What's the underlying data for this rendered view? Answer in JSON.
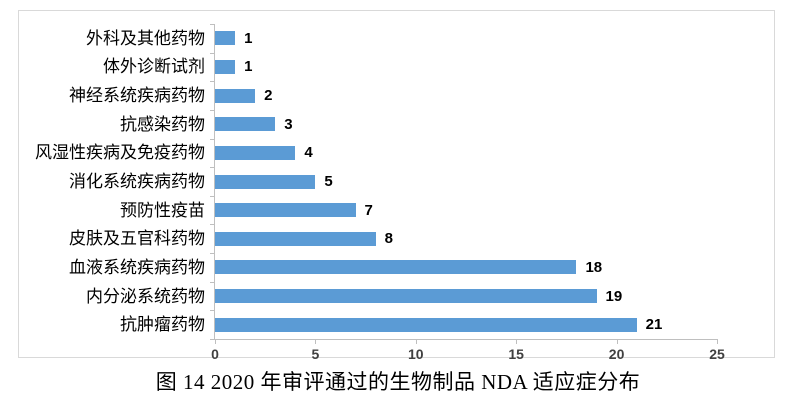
{
  "figure": {
    "caption": "图 14  2020 年审评通过的生物制品 NDA 适应症分布"
  },
  "chart_data": {
    "type": "bar",
    "orientation": "horizontal",
    "title": "图 14  2020 年审评通过的生物制品 NDA 适应症分布",
    "categories": [
      "外科及其他药物",
      "体外诊断试剂",
      "神经系统疾病药物",
      "抗感染药物",
      "风湿性疾病及免疫药物",
      "消化系统疾病药物",
      "预防性疫苗",
      "皮肤及五官科药物",
      "血液系统疾病药物",
      "内分泌系统药物",
      "抗肿瘤药物"
    ],
    "values": [
      1,
      1,
      2,
      3,
      4,
      5,
      7,
      8,
      18,
      19,
      21
    ],
    "xlabel": "",
    "ylabel": "",
    "xlim": [
      0,
      25
    ],
    "x_ticks": [
      0,
      5,
      10,
      15,
      20,
      25
    ],
    "grid": false,
    "legend": false,
    "value_labels": true,
    "bar_color": "#5B9BD5",
    "axis_color": "#BFBFBF",
    "frame_color": "#D9D9D9",
    "tick_text_color": "#404040"
  }
}
